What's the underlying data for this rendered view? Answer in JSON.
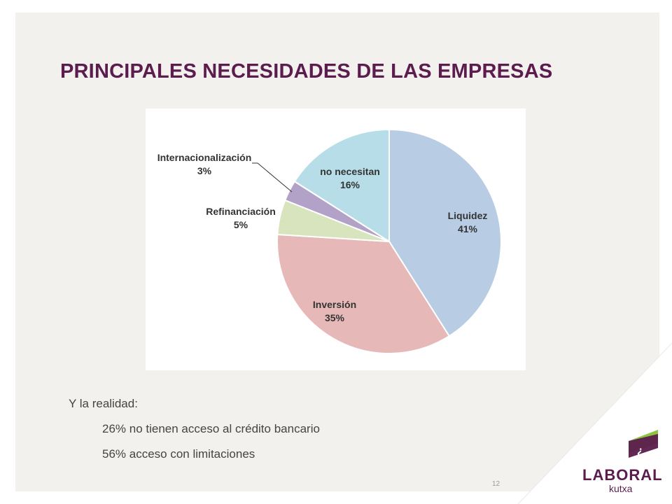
{
  "title": "PRINCIPALES NECESIDADES DE LAS EMPRESAS",
  "chart_data": {
    "type": "pie",
    "slices": [
      {
        "label": "Liquidez",
        "value": 41,
        "display": "41%",
        "color": "#b8cce4"
      },
      {
        "label": "Inversión",
        "value": 35,
        "display": "35%",
        "color": "#e6b9b8"
      },
      {
        "label": "Refinanciación",
        "value": 5,
        "display": "5%",
        "color": "#d7e4bd"
      },
      {
        "label": "Internacionalización",
        "value": 3,
        "display": "3%",
        "color": "#b3a2c7"
      },
      {
        "label": "no necesitan",
        "value": 16,
        "display": "16%",
        "color": "#b7dee8"
      }
    ]
  },
  "body": {
    "intro": "Y la realidad:",
    "point1": "26% no tienen acceso al crédito bancario",
    "point2": "56% acceso con limitaciones"
  },
  "page_number": "12",
  "logo": {
    "name": "LABORAL",
    "sub": "kutxa",
    "colors": {
      "purple": "#5c1c4e",
      "green": "#8cc63e"
    }
  }
}
